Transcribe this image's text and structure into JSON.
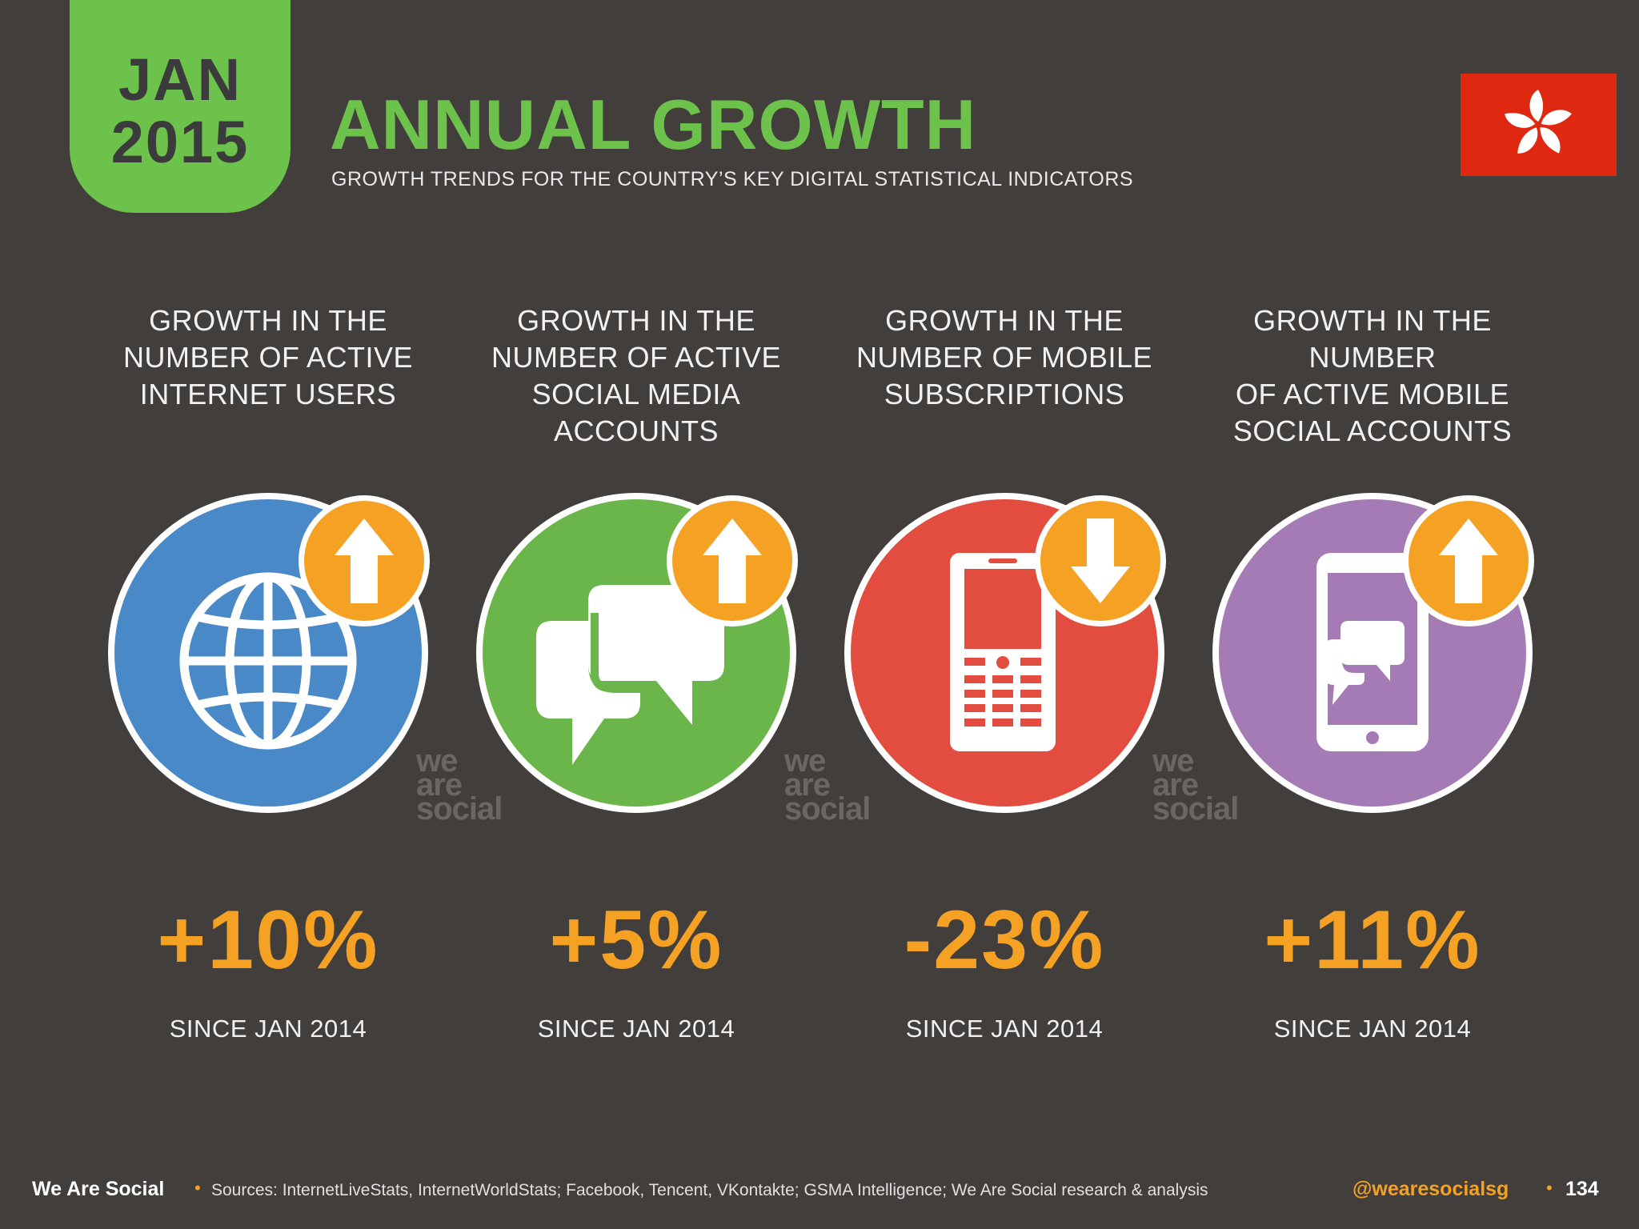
{
  "badge": {
    "month": "JAN",
    "year": "2015"
  },
  "header": {
    "title": "ANNUAL GROWTH",
    "subtitle": "GROWTH TRENDS FOR THE COUNTRY’S KEY DIGITAL STATISTICAL INDICATORS",
    "flag_icon": "hong-kong-flag-icon"
  },
  "watermark": {
    "line1": "we",
    "line2": "are",
    "line3": "social"
  },
  "columns": [
    {
      "heading_lines": [
        "GROWTH IN THE",
        "NUMBER OF ACTIVE",
        "INTERNET USERS"
      ],
      "value": "+10%",
      "since": "SINCE JAN 2014",
      "icon": "globe-icon",
      "direction": "up",
      "color": "#4a89c8"
    },
    {
      "heading_lines": [
        "GROWTH IN THE",
        "NUMBER OF ACTIVE",
        "SOCIAL MEDIA ACCOUNTS"
      ],
      "value": "+5%",
      "since": "SINCE JAN 2014",
      "icon": "chat-bubbles-icon",
      "direction": "up",
      "color": "#6bb64a"
    },
    {
      "heading_lines": [
        "GROWTH IN THE",
        "NUMBER OF MOBILE",
        "SUBSCRIPTIONS"
      ],
      "value": "-23%",
      "since": "SINCE JAN 2014",
      "icon": "mobile-phone-icon",
      "direction": "down",
      "color": "#e24d3f"
    },
    {
      "heading_lines": [
        "GROWTH IN THE NUMBER",
        "OF ACTIVE MOBILE",
        "SOCIAL ACCOUNTS"
      ],
      "value": "+11%",
      "since": "SINCE JAN 2014",
      "icon": "smartphone-chat-icon",
      "direction": "up",
      "color": "#a57bb5"
    }
  ],
  "footer": {
    "brand": "We Are Social",
    "separator": "•",
    "sources": "Sources: InternetLiveStats, InternetWorldStats; Facebook, Tencent, VKontakte; GSMA Intelligence; We Are Social research & analysis",
    "handle": "@wearesocialsg",
    "page": "134"
  },
  "colors": {
    "accent_green": "#6cc24a",
    "accent_orange": "#f4a124",
    "background": "#423e3c"
  }
}
